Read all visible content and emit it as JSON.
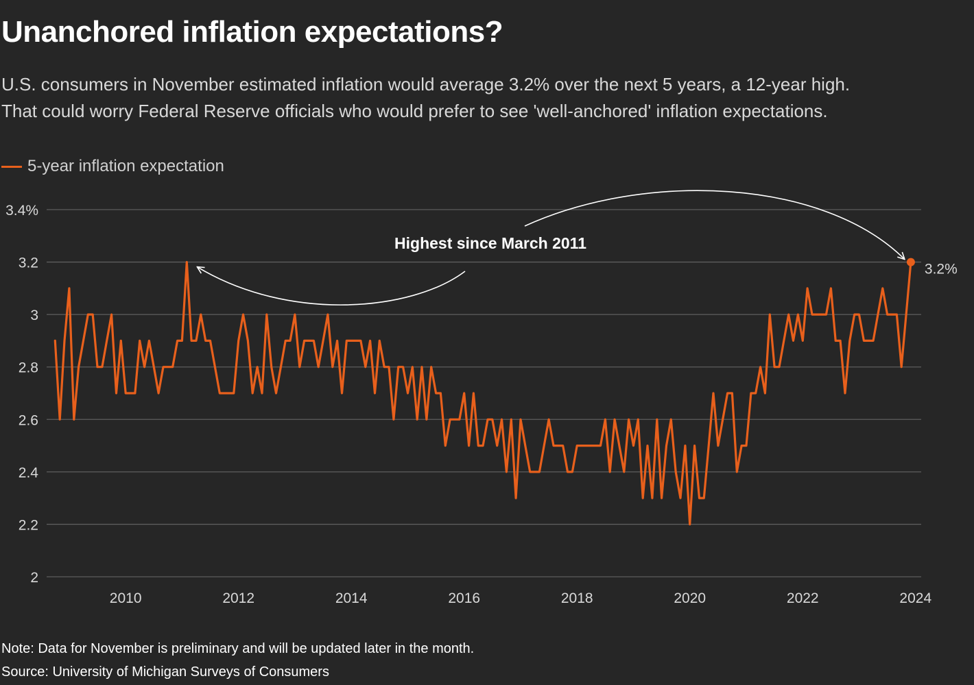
{
  "header": {
    "title": "Unanchored inflation expectations?",
    "subtitle_line1": "U.S. consumers in November estimated inflation would average 3.2% over the next 5 years, a 12-year high.",
    "subtitle_line2": "That could worry Federal Reserve officials who would prefer to see 'well-anchored' inflation expectations."
  },
  "legend": {
    "label": "5-year inflation expectation"
  },
  "footer": {
    "note": "Note: Data for November is preliminary and will be updated later in the month.",
    "source": "Source: University of Michigan Surveys of Consumers"
  },
  "colors": {
    "background": "#262626",
    "series": "#e8601c",
    "grid": "#5e5e5e",
    "axis_text": "#d9d9d9"
  },
  "chart_data": {
    "type": "line",
    "title": "Unanchored inflation expectations?",
    "xlabel": "",
    "ylabel": "",
    "xlim": [
      2008.6,
      2024.1
    ],
    "ylim": [
      2,
      3.4
    ],
    "grid": true,
    "legend_position": "top-left",
    "x_ticks": [
      2010,
      2012,
      2014,
      2016,
      2018,
      2020,
      2022,
      2024
    ],
    "x_tick_labels": [
      "2010",
      "2012",
      "2014",
      "2016",
      "2018",
      "2020",
      "2022",
      "2024"
    ],
    "y_ticks": [
      2,
      2.2,
      2.4,
      2.6,
      2.8,
      3,
      3.2,
      3.4
    ],
    "y_tick_labels": [
      "2",
      "2.2",
      "2.4",
      "2.6",
      "2.8",
      "3",
      "3.2",
      "3.4%"
    ],
    "series": [
      {
        "name": "5-year inflation expectation",
        "start": "2008-10",
        "frequency": "monthly",
        "values": [
          2.9,
          2.6,
          2.9,
          3.1,
          2.6,
          2.8,
          2.9,
          3.0,
          3.0,
          2.8,
          2.8,
          2.9,
          3.0,
          2.7,
          2.9,
          2.7,
          2.7,
          2.7,
          2.9,
          2.8,
          2.9,
          2.8,
          2.7,
          2.8,
          2.8,
          2.8,
          2.9,
          2.9,
          3.2,
          2.9,
          2.9,
          3.0,
          2.9,
          2.9,
          2.8,
          2.7,
          2.7,
          2.7,
          2.7,
          2.9,
          3.0,
          2.9,
          2.7,
          2.8,
          2.7,
          3.0,
          2.8,
          2.7,
          2.8,
          2.9,
          2.9,
          3.0,
          2.8,
          2.9,
          2.9,
          2.9,
          2.8,
          2.9,
          3.0,
          2.8,
          2.9,
          2.7,
          2.9,
          2.9,
          2.9,
          2.9,
          2.8,
          2.9,
          2.7,
          2.9,
          2.8,
          2.8,
          2.6,
          2.8,
          2.8,
          2.7,
          2.8,
          2.6,
          2.8,
          2.6,
          2.8,
          2.7,
          2.7,
          2.5,
          2.6,
          2.6,
          2.6,
          2.7,
          2.5,
          2.7,
          2.5,
          2.5,
          2.6,
          2.6,
          2.5,
          2.6,
          2.4,
          2.6,
          2.3,
          2.6,
          2.5,
          2.4,
          2.4,
          2.4,
          2.5,
          2.6,
          2.5,
          2.5,
          2.5,
          2.4,
          2.4,
          2.5,
          2.5,
          2.5,
          2.5,
          2.5,
          2.5,
          2.6,
          2.4,
          2.6,
          2.5,
          2.4,
          2.6,
          2.5,
          2.6,
          2.3,
          2.5,
          2.3,
          2.6,
          2.3,
          2.5,
          2.6,
          2.4,
          2.3,
          2.5,
          2.2,
          2.5,
          2.3,
          2.3,
          2.5,
          2.7,
          2.5,
          2.6,
          2.7,
          2.7,
          2.4,
          2.5,
          2.5,
          2.7,
          2.7,
          2.8,
          2.7,
          3.0,
          2.8,
          2.8,
          2.9,
          3.0,
          2.9,
          3.0,
          2.9,
          3.1,
          3.0,
          3.0,
          3.0,
          3.0,
          3.1,
          2.9,
          2.9,
          2.7,
          2.9,
          3.0,
          3.0,
          2.9,
          2.9,
          2.9,
          3.0,
          3.1,
          3.0,
          3.0,
          3.0,
          2.8,
          3.0,
          3.2
        ]
      }
    ],
    "annotations": [
      {
        "text": "Highest since March 2011",
        "x": 2011.17,
        "y": 3.2
      },
      {
        "text": "3.2%",
        "x": 2023.83,
        "y": 3.2
      }
    ]
  }
}
